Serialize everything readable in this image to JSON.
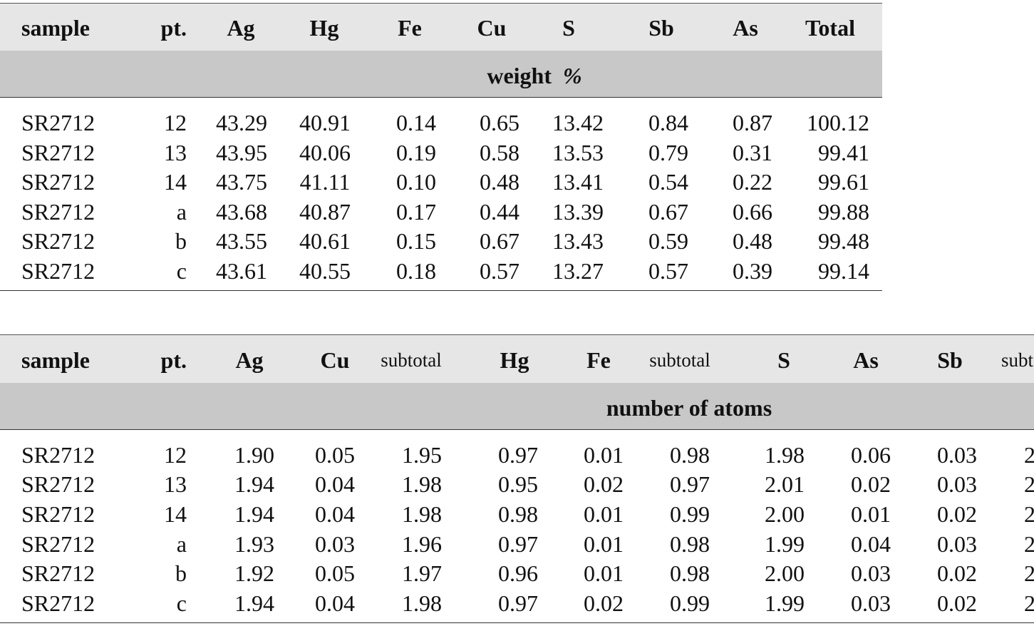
{
  "tables": [
    {
      "headers": [
        "sample",
        "pt.",
        "Ag",
        "Hg",
        "Fe",
        "Cu",
        "S",
        "Sb",
        "As",
        "Total"
      ],
      "unit_label": {
        "text": "weight",
        "symbol": "%"
      },
      "rows": [
        [
          "SR2712",
          "12",
          "43.29",
          "40.91",
          "0.14",
          "0.65",
          "13.42",
          "0.84",
          "0.87",
          "100.12"
        ],
        [
          "SR2712",
          "13",
          "43.95",
          "40.06",
          "0.19",
          "0.58",
          "13.53",
          "0.79",
          "0.31",
          "99.41"
        ],
        [
          "SR2712",
          "14",
          "43.75",
          "41.11",
          "0.10",
          "0.48",
          "13.41",
          "0.54",
          "0.22",
          "99.61"
        ],
        [
          "SR2712",
          "a",
          "43.68",
          "40.87",
          "0.17",
          "0.44",
          "13.39",
          "0.67",
          "0.66",
          "99.88"
        ],
        [
          "SR2712",
          "b",
          "43.55",
          "40.61",
          "0.15",
          "0.67",
          "13.43",
          "0.59",
          "0.48",
          "99.48"
        ],
        [
          "SR2712",
          "c",
          "43.61",
          "40.55",
          "0.18",
          "0.57",
          "13.27",
          "0.57",
          "0.39",
          "99.14"
        ]
      ]
    },
    {
      "headers": [
        "sample",
        "pt.",
        "Ag",
        "Cu",
        "subtotal",
        "Hg",
        "Fe",
        "subtotal",
        "S",
        "As",
        "Sb",
        "subt"
      ],
      "unit_label": {
        "text": "number of atoms"
      },
      "rows": [
        [
          "SR2712",
          "12",
          "1.90",
          "0.05",
          "1.95",
          "0.97",
          "0.01",
          "0.98",
          "1.98",
          "0.06",
          "0.03",
          "2"
        ],
        [
          "SR2712",
          "13",
          "1.94",
          "0.04",
          "1.98",
          "0.95",
          "0.02",
          "0.97",
          "2.01",
          "0.02",
          "0.03",
          "2"
        ],
        [
          "SR2712",
          "14",
          "1.94",
          "0.04",
          "1.98",
          "0.98",
          "0.01",
          "0.99",
          "2.00",
          "0.01",
          "0.02",
          "2"
        ],
        [
          "SR2712",
          "a",
          "1.93",
          "0.03",
          "1.96",
          "0.97",
          "0.01",
          "0.98",
          "1.99",
          "0.04",
          "0.03",
          "2"
        ],
        [
          "SR2712",
          "b",
          "1.92",
          "0.05",
          "1.97",
          "0.96",
          "0.01",
          "0.98",
          "2.00",
          "0.03",
          "0.02",
          "2"
        ],
        [
          "SR2712",
          "c",
          "1.94",
          "0.04",
          "1.98",
          "0.97",
          "0.02",
          "0.99",
          "1.99",
          "0.03",
          "0.02",
          "2"
        ]
      ]
    }
  ]
}
